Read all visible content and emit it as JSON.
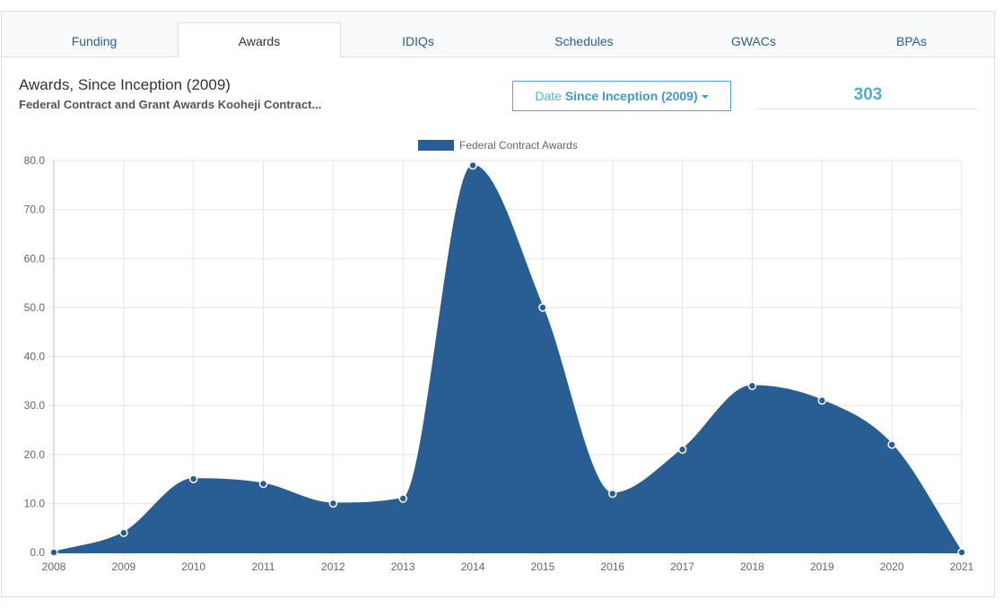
{
  "tabs": [
    {
      "label": "Funding",
      "active": false
    },
    {
      "label": "Awards",
      "active": true
    },
    {
      "label": "IDIQs",
      "active": false
    },
    {
      "label": "Schedules",
      "active": false
    },
    {
      "label": "GWACs",
      "active": false
    },
    {
      "label": "BPAs",
      "active": false
    }
  ],
  "header": {
    "title": "Awards, Since Inception (2009)",
    "subtitle": "Federal Contract and Grant Awards Kooheji Contract..."
  },
  "date_filter": {
    "label": "Date",
    "selected": "Since Inception (2009)"
  },
  "total_count": "303",
  "colors": {
    "series_fill": "#285e93",
    "accent": "#4eaed2",
    "grid": "#e5e5e5"
  },
  "chart_data": {
    "type": "area",
    "title": "",
    "xlabel": "",
    "ylabel": "",
    "categories": [
      "2008",
      "2009",
      "2010",
      "2011",
      "2012",
      "2013",
      "2014",
      "2015",
      "2016",
      "2017",
      "2018",
      "2019",
      "2020",
      "2021"
    ],
    "series": [
      {
        "name": "Federal Contract Awards",
        "values": [
          0,
          4,
          15,
          14,
          10,
          11,
          79,
          50,
          12,
          21,
          34,
          31,
          22,
          0
        ]
      }
    ],
    "ylim": [
      0,
      80
    ],
    "yticks": [
      "0.0",
      "10.0",
      "20.0",
      "30.0",
      "40.0",
      "50.0",
      "60.0",
      "70.0",
      "80.0"
    ],
    "grid": true,
    "legend_position": "top-center"
  }
}
